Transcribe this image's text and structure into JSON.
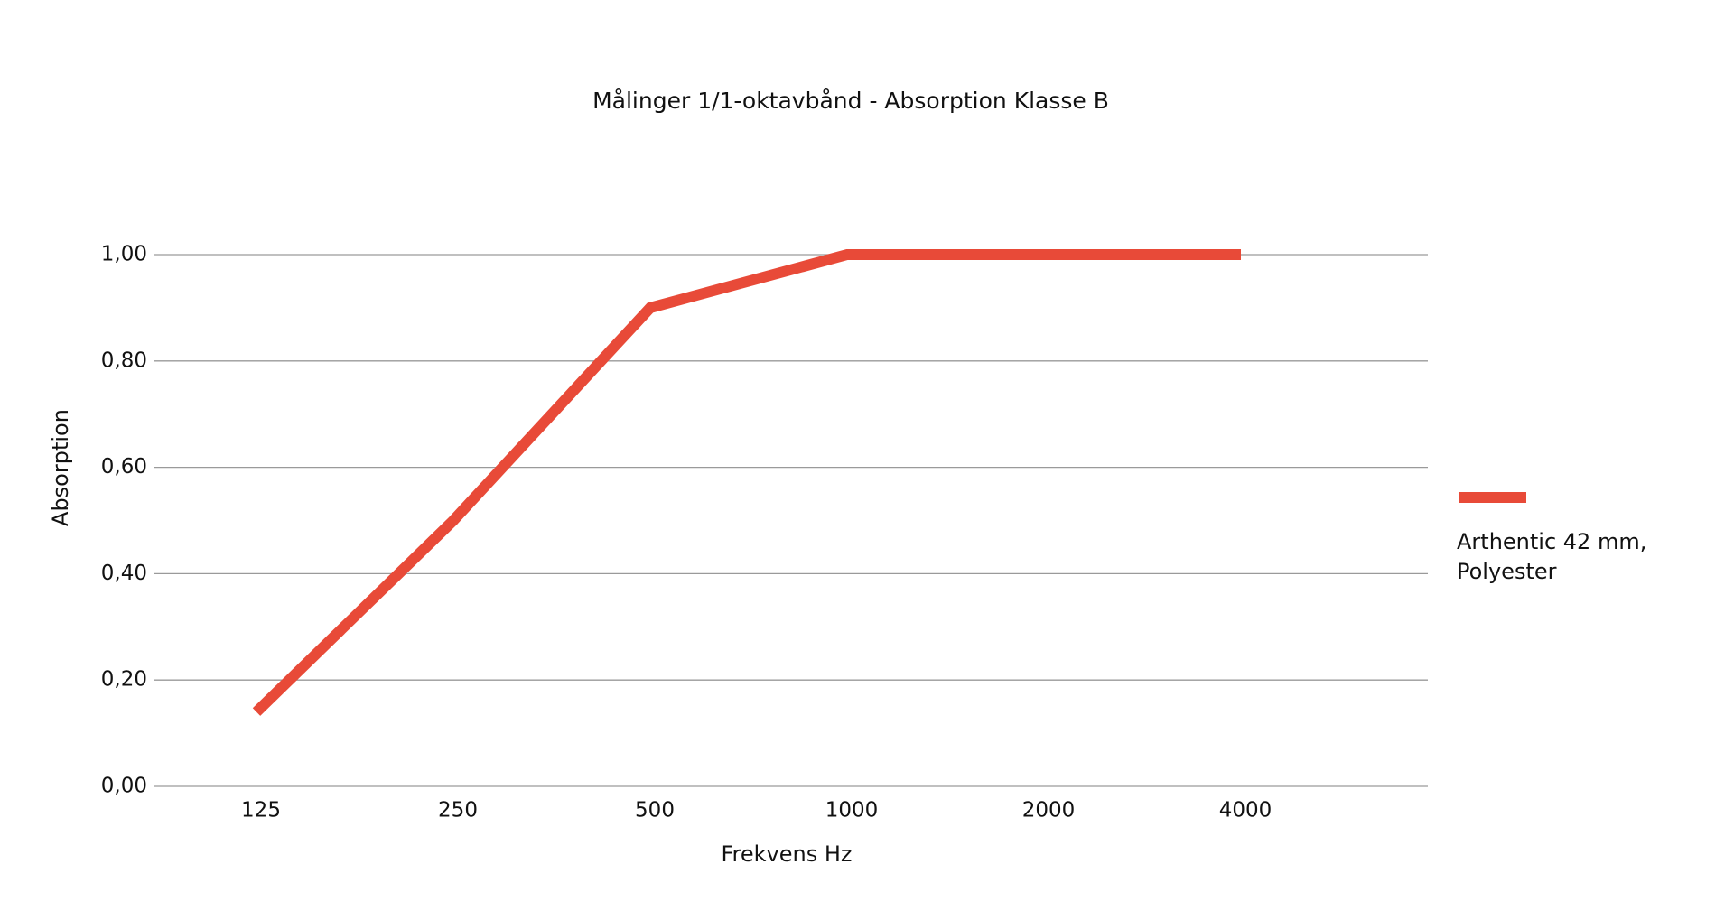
{
  "chart_data": {
    "type": "line",
    "title": "Målinger  1/1-oktavbånd - Absorption Klasse B",
    "x_label": "Frekvens Hz",
    "y_label": "Absorption",
    "categories": [
      "125",
      "250",
      "500",
      "1000",
      "2000",
      "4000"
    ],
    "series": [
      {
        "name": "Arthentic 42 mm, Polyester",
        "color": "#e84a38",
        "values": [
          0.14,
          0.5,
          0.9,
          1.0,
          1.0,
          1.0
        ]
      }
    ],
    "ylim": [
      0,
      1
    ],
    "yticks": [
      {
        "value": 0,
        "label": "0,00"
      },
      {
        "value": 0.2,
        "label": "0,20"
      },
      {
        "value": 0.4,
        "label": "0,40"
      },
      {
        "value": 0.6,
        "label": "0,60"
      },
      {
        "value": 0.8,
        "label": "0,80"
      },
      {
        "value": 1,
        "label": "1,00"
      }
    ],
    "grid": true,
    "legend": "right"
  }
}
